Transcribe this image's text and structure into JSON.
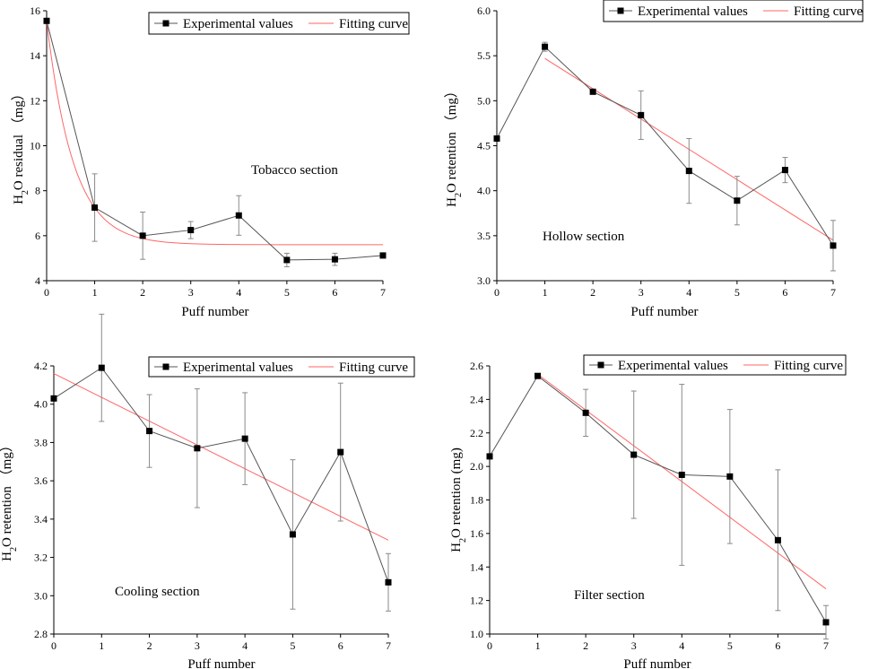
{
  "chart_data": [
    {
      "type": "line",
      "panel": "top-left",
      "annotation": "Tobacco section",
      "xlabel": "Puff number",
      "ylabel_parts": [
        "H",
        "2",
        "O residual  （mg）"
      ],
      "xlim": [
        0,
        7
      ],
      "ylim": [
        4,
        16
      ],
      "xticks": [
        0,
        1,
        2,
        3,
        4,
        5,
        6,
        7
      ],
      "yticks": [
        4,
        6,
        8,
        10,
        12,
        14,
        16
      ],
      "ytick_labels": [
        "4",
        "6",
        "8",
        "10",
        "12",
        "14",
        "16"
      ],
      "legend": {
        "placement": "top-right",
        "experimental": "Experimental values",
        "fit": "Fitting curve"
      },
      "series": [
        {
          "name": "Experimental values",
          "x": [
            0,
            1,
            2,
            3,
            4,
            5,
            6,
            7
          ],
          "y": [
            15.55,
            7.25,
            6.0,
            6.25,
            6.9,
            4.92,
            4.95,
            5.12
          ],
          "err": [
            0,
            1.5,
            1.05,
            0.38,
            0.88,
            0.3,
            0.27,
            0.0
          ]
        },
        {
          "name": "Fitting curve",
          "model": "exponential",
          "y0": 5.6,
          "A": 9.95,
          "k": 1.8
        }
      ]
    },
    {
      "type": "line",
      "panel": "top-right",
      "annotation": "Hollow section",
      "xlabel": "Puff number",
      "ylabel_parts": [
        "H",
        "2",
        "O  retention  （mg）"
      ],
      "xlim": [
        0,
        7
      ],
      "ylim": [
        3.0,
        6.0
      ],
      "xticks": [
        0,
        1,
        2,
        3,
        4,
        5,
        6,
        7
      ],
      "yticks": [
        3.0,
        3.5,
        4.0,
        4.5,
        5.0,
        5.5,
        6.0
      ],
      "ytick_labels": [
        "3.0",
        "3.5",
        "4.0",
        "4.5",
        "5.0",
        "5.5",
        "6.0"
      ],
      "legend": {
        "placement": "top-right",
        "experimental": "Experimental values",
        "fit": "Fitting curve"
      },
      "series": [
        {
          "name": "Experimental values",
          "x": [
            0,
            1,
            2,
            3,
            4,
            5,
            6,
            7
          ],
          "y": [
            4.58,
            5.6,
            5.1,
            4.84,
            4.22,
            3.89,
            4.23,
            3.39
          ],
          "err": [
            0,
            0.05,
            0.02,
            0.27,
            0.36,
            0.27,
            0.14,
            0.28
          ]
        },
        {
          "name": "Fitting curve",
          "model": "linear",
          "x": [
            1,
            7
          ],
          "y": [
            5.47,
            3.45
          ]
        }
      ]
    },
    {
      "type": "line",
      "panel": "bottom-left",
      "annotation": "Cooling section",
      "xlabel": "Puff number",
      "ylabel_parts": [
        "H",
        "2",
        "O  retention  （mg）"
      ],
      "xlim": [
        0,
        7
      ],
      "ylim": [
        2.8,
        4.2
      ],
      "xticks": [
        0,
        1,
        2,
        3,
        4,
        5,
        6,
        7
      ],
      "yticks": [
        2.8,
        3.0,
        3.2,
        3.4,
        3.6,
        3.8,
        4.0,
        4.2
      ],
      "ytick_labels": [
        "2.8",
        "3.0",
        "3.2",
        "3.4",
        "3.6",
        "3.8",
        "4.0",
        "4.2"
      ],
      "legend": {
        "placement": "top-right",
        "experimental": "Experimental values",
        "fit": "Fitting curve"
      },
      "series": [
        {
          "name": "Experimental values",
          "x": [
            0,
            1,
            2,
            3,
            4,
            5,
            6,
            7
          ],
          "y": [
            4.03,
            4.19,
            3.86,
            3.77,
            3.82,
            3.32,
            3.75,
            3.07
          ],
          "err": [
            0,
            0.28,
            0.19,
            0.31,
            0.24,
            0.39,
            0.36,
            0.15
          ]
        },
        {
          "name": "Fitting curve",
          "model": "linear",
          "x": [
            0,
            7
          ],
          "y": [
            4.16,
            3.29
          ]
        }
      ]
    },
    {
      "type": "line",
      "panel": "bottom-right",
      "annotation": "Filter section",
      "xlabel": "Puff number",
      "ylabel_parts": [
        "H",
        "2",
        "O retention  (mg)"
      ],
      "xlim": [
        0,
        7
      ],
      "ylim": [
        1.0,
        2.6
      ],
      "xticks": [
        0,
        1,
        2,
        3,
        4,
        5,
        6,
        7
      ],
      "yticks": [
        1.0,
        1.2,
        1.4,
        1.6,
        1.8,
        2.0,
        2.2,
        2.4,
        2.6
      ],
      "ytick_labels": [
        "1.0",
        "1.2",
        "1.4",
        "1.6",
        "1.8",
        "2.0",
        "2.2",
        "2.4",
        "2.6"
      ],
      "legend": {
        "placement": "top-right",
        "experimental": "Experimental values",
        "fit": "Fitting curve"
      },
      "series": [
        {
          "name": "Experimental values",
          "x": [
            0,
            1,
            2,
            3,
            4,
            5,
            6,
            7
          ],
          "y": [
            2.06,
            2.54,
            2.32,
            2.07,
            1.95,
            1.94,
            1.56,
            1.07
          ],
          "err": [
            0,
            0,
            0.14,
            0.38,
            0.54,
            0.4,
            0.42,
            0.1
          ]
        },
        {
          "name": "Fitting curve",
          "model": "linear",
          "x": [
            1,
            7
          ],
          "y": [
            2.55,
            1.27
          ]
        }
      ]
    }
  ],
  "colors": {
    "experimental": "#000000",
    "fit": "#ff6666",
    "axis": "#000000",
    "errorbar": "#8a8a8a",
    "series_line": "#555555"
  }
}
